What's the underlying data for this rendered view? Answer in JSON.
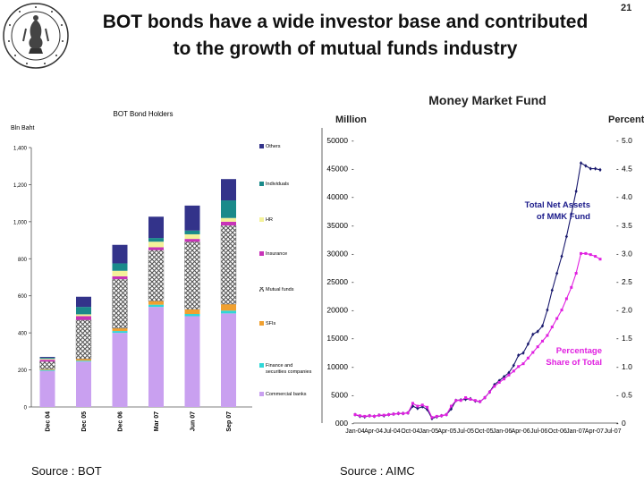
{
  "slide": {
    "number": "21",
    "title_line1": "BOT bonds have a wide investor base and contributed",
    "title_line2": "to the growth of mutual funds industry",
    "source_left": "Source : BOT",
    "source_right": "Source : AIMC"
  },
  "chart_data": [
    {
      "type": "bar",
      "stacked": true,
      "title": "BOT Bond Holders",
      "ylabel": "Bln Baht",
      "ylim": [
        0,
        1400
      ],
      "yticks": [
        "0",
        "200",
        "400",
        "600",
        "800",
        "1,000",
        "1,200",
        "1,400"
      ],
      "categories": [
        "Dec 04",
        "Dec 05",
        "Dec 06",
        "Mar 07",
        "Jun 07",
        "Sep 07"
      ],
      "series": [
        {
          "name": "Commercial banks",
          "color": "#c9a0f0",
          "values": [
            195,
            245,
            400,
            540,
            490,
            505
          ]
        },
        {
          "name": "Finance and securities companies",
          "color": "#2fd7d7",
          "values": [
            5,
            5,
            10,
            12,
            12,
            15
          ]
        },
        {
          "name": "SFIs",
          "color": "#f0a030",
          "values": [
            5,
            10,
            15,
            20,
            25,
            35
          ]
        },
        {
          "name": "Mutual funds",
          "color": "#7a7a7a",
          "values": [
            40,
            210,
            265,
            275,
            365,
            425
          ]
        },
        {
          "name": "Insurance",
          "color": "#c833b8",
          "values": [
            10,
            20,
            15,
            15,
            15,
            20
          ]
        },
        {
          "name": "HR",
          "color": "#f4f29a",
          "values": [
            5,
            10,
            30,
            30,
            25,
            20
          ]
        },
        {
          "name": "Individuals",
          "color": "#1a8a8a",
          "values": [
            5,
            40,
            40,
            20,
            20,
            95
          ]
        },
        {
          "name": "Others",
          "color": "#33338a",
          "values": [
            5,
            55,
            100,
            115,
            135,
            115
          ]
        }
      ]
    },
    {
      "type": "line",
      "title": "Money Market Fund",
      "ylabel_left": "Million",
      "ylabel_right": "Percent",
      "ylim_left": [
        0,
        50000
      ],
      "ylim_right": [
        0,
        5.0
      ],
      "yticks_left": [
        "000",
        "5000",
        "10000",
        "15000",
        "20000",
        "25000",
        "30000",
        "35000",
        "40000",
        "45000",
        "50000"
      ],
      "yticks_right": [
        "0",
        "0.5",
        "1.0",
        "1.5",
        "2.0",
        "2.5",
        "3.0",
        "3.5",
        "4.0",
        "4.5",
        "5.0"
      ],
      "x_labels": [
        "Jan-04",
        "Apr-04",
        "Jul-04",
        "Oct-04",
        "Jan-05",
        "Apr-05",
        "Jul-05",
        "Oct-05",
        "Jan-06",
        "Apr-06",
        "Jul-06",
        "Oct-06",
        "Jan-07",
        "Apr-07",
        "Jul-07"
      ],
      "annotation_tna": [
        "Total Net Assets",
        "of MMK Fund"
      ],
      "annotation_pct": [
        "Percentage",
        "Share of Total"
      ],
      "series": [
        {
          "name": "Total Net Assets of MMK Fund",
          "axis": "left",
          "color": "#1a1a6e",
          "values": [
            1500,
            1200,
            1100,
            1300,
            1200,
            1400,
            1300,
            1500,
            1600,
            1700,
            1700,
            1800,
            3000,
            2600,
            2900,
            2400,
            800,
            1100,
            1300,
            1500,
            2500,
            4000,
            4100,
            4200,
            4300,
            3900,
            3800,
            4500,
            5500,
            6800,
            7500,
            8200,
            8900,
            10200,
            12000,
            12400,
            14000,
            15700,
            16200,
            17200,
            20000,
            23500,
            26500,
            29500,
            33000,
            37000,
            41000,
            46000,
            45500,
            45000,
            45000,
            44800
          ]
        },
        {
          "name": "Percentage Share of Total",
          "axis": "right",
          "color": "#e020e0",
          "values": [
            0.15,
            0.13,
            0.12,
            0.13,
            0.12,
            0.14,
            0.14,
            0.15,
            0.16,
            0.17,
            0.17,
            0.18,
            0.35,
            0.3,
            0.32,
            0.28,
            0.1,
            0.12,
            0.13,
            0.15,
            0.3,
            0.4,
            0.4,
            0.45,
            0.42,
            0.4,
            0.38,
            0.45,
            0.55,
            0.65,
            0.72,
            0.78,
            0.85,
            0.92,
            1.0,
            1.05,
            1.15,
            1.25,
            1.35,
            1.45,
            1.55,
            1.7,
            1.85,
            2.0,
            2.2,
            2.4,
            2.65,
            3.0,
            3.0,
            2.98,
            2.95,
            2.9
          ]
        }
      ]
    }
  ]
}
